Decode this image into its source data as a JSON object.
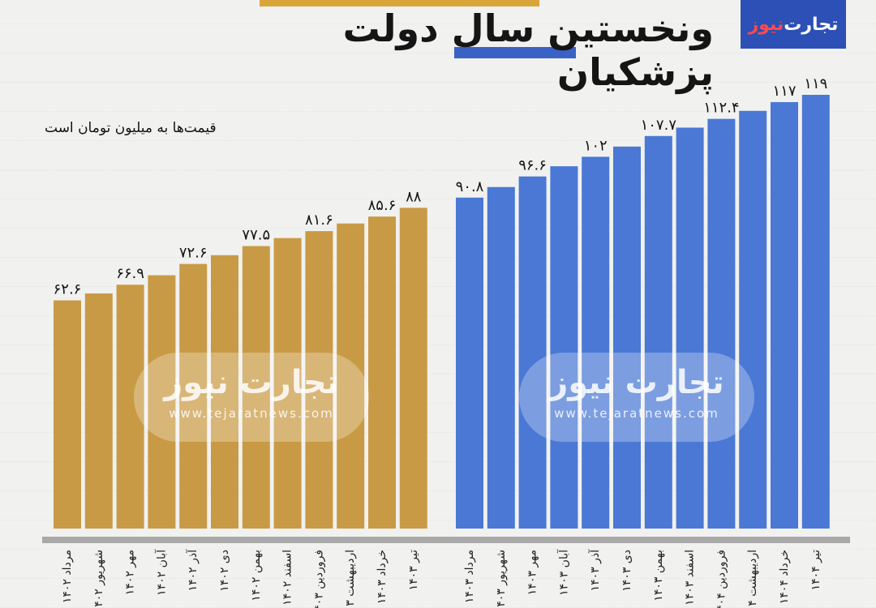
{
  "title": "ونخستین سال دولت پزشکیان",
  "logo": {
    "part1": "تجارت",
    "part2": "نیوز"
  },
  "unit_note": "قیمت‌ها به میلیون تومان است",
  "watermark": {
    "logo": "تجارت نیوز",
    "url": "www.tejaratnews.com"
  },
  "colors": {
    "series1": "#c99a45",
    "series2": "#4a78d4",
    "axis": "#a9a9a9"
  },
  "chart_data": {
    "type": "bar",
    "ylim": [
      0,
      125
    ],
    "groups": [
      {
        "name": "",
        "categories": [
          "مرداد ۱۴۰۲",
          "شهریور ۱۴۰۲",
          "مهر ۱۴۰۲",
          "آبان ۱۴۰۲",
          "آذر ۱۴۰۲",
          "دی ۱۴۰۲",
          "بهمن ۱۴۰۲",
          "اسفند ۱۴۰۲",
          "فروردین ۱۴۰۳",
          "اردیبهشت ۱۴۰۳",
          "خرداد ۱۴۰۳",
          "تیر ۱۴۰۳"
        ],
        "values": [
          62.6,
          64.5,
          66.9,
          69.5,
          72.6,
          75.0,
          77.5,
          79.7,
          81.6,
          83.7,
          85.6,
          88.0
        ],
        "labels": [
          "۶۲.۶",
          "",
          "۶۶.۹",
          "",
          "۷۲.۶",
          "",
          "۷۷.۵",
          "",
          "۸۱.۶",
          "",
          "۸۵.۶",
          "۸۸"
        ]
      },
      {
        "name": "",
        "categories": [
          "مرداد ۱۴۰۳",
          "شهریور ۱۴۰۳",
          "مهر ۱۴۰۳",
          "آبان ۱۴۰۳",
          "آذر ۱۴۰۳",
          "دی ۱۴۰۳",
          "بهمن ۱۴۰۳",
          "اسفند ۱۴۰۳",
          "فروردین ۱۴۰۴",
          "اردیبهشت ۱۴۰۴",
          "خرداد ۱۴۰۴",
          "تیر ۱۴۰۴"
        ],
        "values": [
          90.8,
          93.7,
          96.6,
          99.4,
          102.0,
          104.8,
          107.7,
          110.0,
          112.4,
          114.6,
          117.0,
          119.0
        ],
        "labels": [
          "۹۰.۸",
          "",
          "۹۶.۶",
          "",
          "۱۰۲",
          "",
          "۱۰۷.۷",
          "",
          "۱۱۲.۴",
          "",
          "۱۱۷",
          "۱۱۹"
        ]
      }
    ]
  }
}
